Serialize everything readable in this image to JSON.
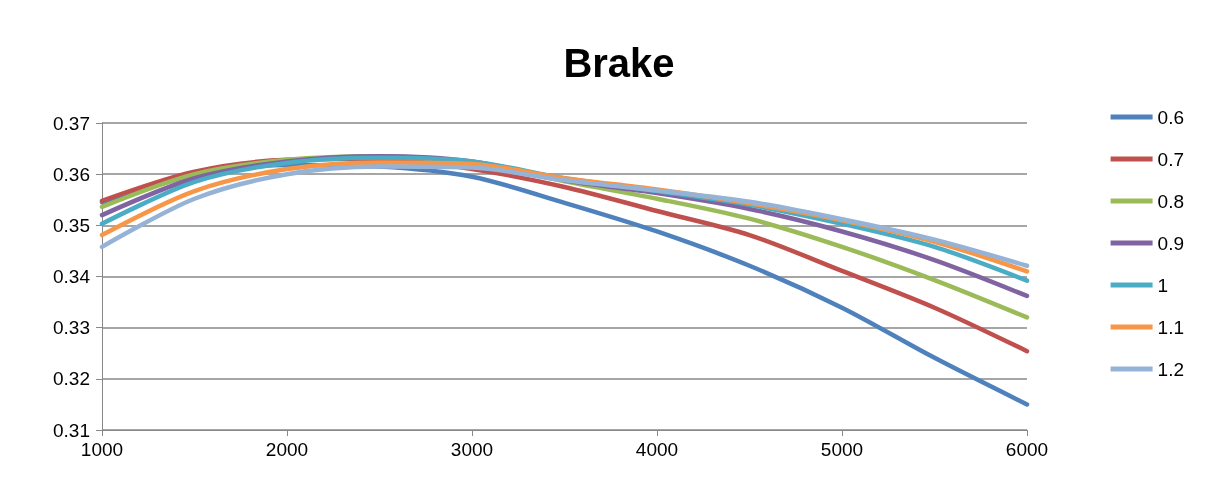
{
  "chart_data": {
    "type": "line",
    "title": "Brake",
    "x": [
      1000,
      1500,
      2000,
      2500,
      3000,
      3500,
      4000,
      4500,
      5000,
      5500,
      6000
    ],
    "series": [
      {
        "name": "0.6",
        "color": "#4f81bd",
        "values": [
          0.3545,
          0.3598,
          0.3618,
          0.3615,
          0.3595,
          0.3544,
          0.3488,
          0.3421,
          0.3339,
          0.3241,
          0.315
        ]
      },
      {
        "name": "0.7",
        "color": "#c0504d",
        "values": [
          0.3548,
          0.3605,
          0.3628,
          0.363,
          0.361,
          0.3575,
          0.3528,
          0.3481,
          0.3411,
          0.3339,
          0.3254
        ]
      },
      {
        "name": "0.8",
        "color": "#9bbb59",
        "values": [
          0.3536,
          0.36,
          0.3628,
          0.3635,
          0.3622,
          0.3586,
          0.3552,
          0.3513,
          0.3458,
          0.3393,
          0.332
        ]
      },
      {
        "name": "0.9",
        "color": "#8064a2",
        "values": [
          0.352,
          0.3592,
          0.3625,
          0.3635,
          0.3625,
          0.3588,
          0.3563,
          0.3532,
          0.3488,
          0.3432,
          0.3362
        ]
      },
      {
        "name": "1",
        "color": "#4bacc6",
        "values": [
          0.3503,
          0.3585,
          0.3622,
          0.3632,
          0.3625,
          0.3592,
          0.3567,
          0.354,
          0.3503,
          0.3458,
          0.3392
        ]
      },
      {
        "name": "1.1",
        "color": "#f79646",
        "values": [
          0.3481,
          0.3567,
          0.361,
          0.3623,
          0.362,
          0.3592,
          0.357,
          0.3543,
          0.351,
          0.3468,
          0.341
        ]
      },
      {
        "name": "1.2",
        "color": "#95b3d7",
        "values": [
          0.3458,
          0.3552,
          0.36,
          0.3615,
          0.3613,
          0.3588,
          0.3568,
          0.3546,
          0.3512,
          0.3472,
          0.3421
        ]
      }
    ],
    "xlim": [
      1000,
      6000
    ],
    "xticks": [
      1000,
      2000,
      3000,
      4000,
      5000,
      6000
    ],
    "ylim": [
      0.31,
      0.37
    ],
    "yticks": [
      0.31,
      0.32,
      0.33,
      0.34,
      0.35,
      0.36,
      0.37
    ],
    "grid": "y",
    "legend": "right",
    "marker": "none",
    "line_style": "solid"
  }
}
